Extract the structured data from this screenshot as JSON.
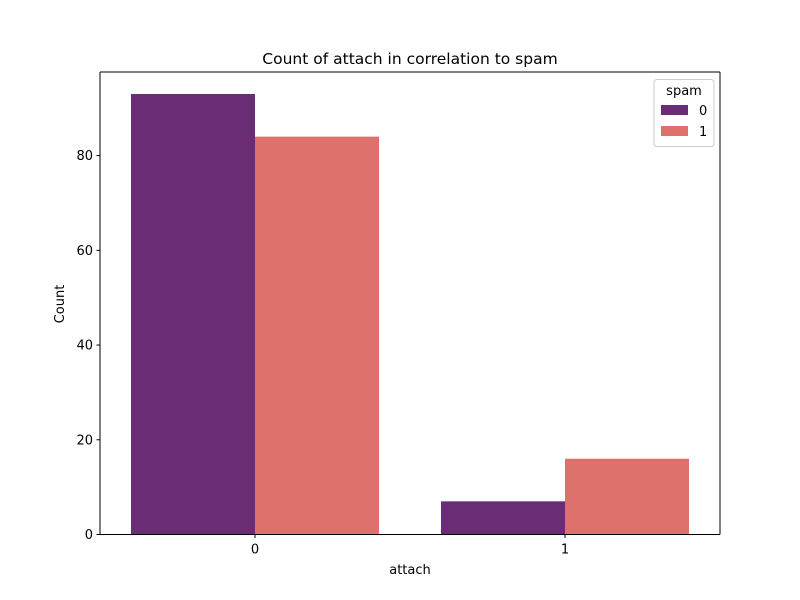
{
  "chart_data": {
    "type": "bar",
    "title": "Count of attach in correlation to spam",
    "xlabel": "attach",
    "ylabel": "Count",
    "categories": [
      "0",
      "1"
    ],
    "ylim": [
      0,
      97.65
    ],
    "yticks": [
      0,
      20,
      40,
      60,
      80
    ],
    "grid": false,
    "legend": {
      "title": "spam",
      "placement": "top-right"
    },
    "series": [
      {
        "name": "0",
        "color": "#6a2c75",
        "values": [
          93,
          7
        ]
      },
      {
        "name": "1",
        "color": "#df716d",
        "values": [
          84,
          16
        ]
      }
    ]
  }
}
